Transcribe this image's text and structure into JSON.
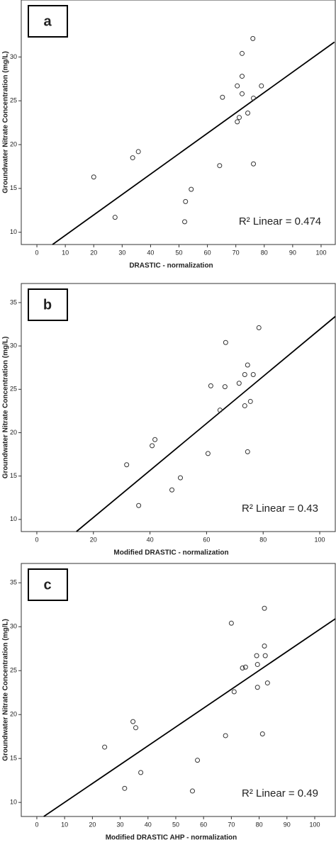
{
  "chart_data": [
    {
      "type": "scatter",
      "panel_label": "a",
      "x_label": "DRASTIC - normalization",
      "y_label": "Groundwater Nitrate Concentration (mg/L)",
      "annotation": "R² Linear = 0.474",
      "x": [
        20,
        27.5,
        33.7,
        35.7,
        52,
        52.3,
        54.3,
        64.3,
        65.3,
        70.5,
        72.2,
        72.2,
        72.2,
        70.5,
        71.2,
        74.2,
        76,
        76.2,
        76.2,
        79
      ],
      "values": [
        16.3,
        11.7,
        18.5,
        19.2,
        11.2,
        13.5,
        14.9,
        17.6,
        25.4,
        26.7,
        25.8,
        27.8,
        30.4,
        22.6,
        23.1,
        23.6,
        32.1,
        25.3,
        17.8,
        26.7
      ],
      "trendline": {
        "x": [
          5.5,
          104.7
        ],
        "y": [
          8.6,
          31.7
        ]
      },
      "xlim": [
        -5.5,
        105
      ],
      "ylim": [
        8.6,
        36.5
      ],
      "xticks": [
        0,
        10,
        20,
        30,
        40,
        50,
        60,
        70,
        80,
        90,
        100
      ],
      "yticks": [
        10,
        15,
        20,
        25,
        30
      ]
    },
    {
      "type": "scatter",
      "panel_label": "b",
      "x_label": "Modified DRASTIC - normalization",
      "y_label": "Groundwater Nitrate Concentration (mg/L)",
      "annotation": "R² Linear = 0.43",
      "x": [
        31.75,
        36,
        40.75,
        41.75,
        47.75,
        50.75,
        60.5,
        61.5,
        64.75,
        66.5,
        66.75,
        71.5,
        73.5,
        74.5,
        73.5,
        75.5,
        74.5,
        76.5,
        78.5
      ],
      "values": [
        16.3,
        11.6,
        18.5,
        19.2,
        13.4,
        14.8,
        17.6,
        25.4,
        22.6,
        25.3,
        30.4,
        25.7,
        26.7,
        27.8,
        23.1,
        23.6,
        17.8,
        26.7,
        32.1
      ],
      "trendline": {
        "x": [
          14,
          105.5
        ],
        "y": [
          8.6,
          33.4
        ]
      },
      "xlim": [
        -5.5,
        105.5
      ],
      "ylim": [
        8.6,
        37.2
      ],
      "xticks": [
        0,
        20,
        40,
        60,
        80,
        100
      ],
      "yticks": [
        10,
        15,
        20,
        25,
        30,
        35
      ]
    },
    {
      "type": "scatter",
      "panel_label": "c",
      "x_label": "Modified DRASTIC AHP - normalization",
      "y_label": "Groundwater Nitrate Concentration (mg/L)",
      "annotation": "R² Linear = 0.49",
      "x": [
        24.4,
        31.6,
        34.6,
        35.6,
        37.4,
        56,
        57.8,
        67.9,
        70,
        71,
        74,
        75.1,
        79.1,
        79.4,
        79.4,
        81.2,
        82.2,
        81.9,
        81.9,
        83
      ],
      "values": [
        16.3,
        11.6,
        19.2,
        18.5,
        13.4,
        11.3,
        14.8,
        17.6,
        30.4,
        22.6,
        25.3,
        25.4,
        26.7,
        25.7,
        23.1,
        17.8,
        26.7,
        27.8,
        32.1,
        23.6
      ],
      "trendline": {
        "x": [
          2.5,
          107.4
        ],
        "y": [
          8.4,
          30.9
        ]
      },
      "xlim": [
        -5.6,
        107.4
      ],
      "ylim": [
        8.4,
        37.2
      ],
      "xticks": [
        0,
        10,
        20,
        30,
        40,
        50,
        60,
        70,
        80,
        90,
        100
      ],
      "yticks": [
        10,
        15,
        20,
        25,
        30,
        35
      ]
    }
  ]
}
